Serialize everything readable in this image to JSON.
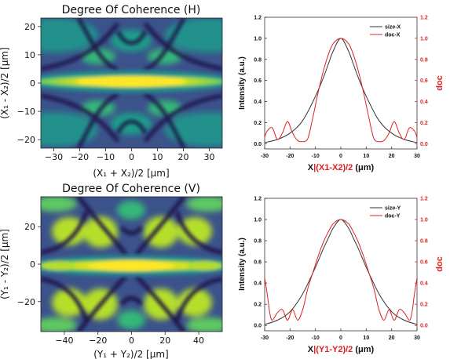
{
  "chart_data": [
    {
      "type": "heatmap",
      "title": "Degree Of Coherence (H)",
      "xlabel": "(X₁ + X₂)/2 [μm]",
      "ylabel": "(X₁ - X₂)/2 [μm]",
      "xlim": [
        -35,
        35
      ],
      "ylim": [
        -23,
        23
      ],
      "xticks": [
        -30,
        -20,
        -10,
        0,
        10,
        20,
        30
      ],
      "yticks": [
        20,
        10,
        0,
        -10,
        -20
      ],
      "xtick_labels": [
        "−30",
        "−20",
        "−10",
        "0",
        "10",
        "20",
        "30"
      ],
      "ytick_labels": [
        "20",
        "10",
        "0",
        "−10",
        "−20"
      ],
      "colormap": "viridis"
    },
    {
      "type": "line",
      "xlabel_prefix": "X",
      "xlabel_red": "|(X1-X2)/2",
      "xlabel_suffix": " (μm)",
      "ylabel": "Intensity (a.u.)",
      "y2label": "doc",
      "xlim": [
        -30,
        30
      ],
      "ylim": [
        -0.05,
        1.2
      ],
      "y2lim": [
        -0.05,
        1.2
      ],
      "xticks": [
        -30,
        -20,
        -10,
        0,
        10,
        20,
        30
      ],
      "xtick_labels": [
        "-30",
        "-20",
        "-10",
        "0",
        "10",
        "20",
        "30"
      ],
      "yticks": [
        0.0,
        0.2,
        0.4,
        0.6,
        0.8,
        1.0,
        1.2
      ],
      "ytick_labels": [
        "0.0",
        "0.2",
        "0.4",
        "0.6",
        "0.8",
        "1.0",
        "1.2"
      ],
      "legend_position": "top-right",
      "series": [
        {
          "name": "size-X",
          "color": "#333333",
          "x": [
            -30,
            -25,
            -20,
            -15,
            -10,
            -7,
            -5,
            -3,
            0,
            3,
            5,
            7,
            10,
            15,
            20,
            25,
            30
          ],
          "values": [
            0.01,
            0.04,
            0.1,
            0.22,
            0.45,
            0.62,
            0.75,
            0.88,
            1.0,
            0.88,
            0.75,
            0.62,
            0.45,
            0.22,
            0.1,
            0.04,
            0.01
          ]
        },
        {
          "name": "doc-X",
          "color": "#e02020",
          "x": [
            -30,
            -29,
            -27,
            -25,
            -23,
            -21,
            -19,
            -17,
            -15,
            -13,
            -11,
            -9,
            -7,
            -5,
            -3,
            0,
            3,
            5,
            7,
            9,
            11,
            13,
            15,
            17,
            19,
            21,
            23,
            25,
            27,
            29,
            30
          ],
          "values": [
            0.06,
            0.12,
            0.15,
            0.04,
            0.1,
            0.21,
            0.1,
            0.03,
            0.02,
            0.05,
            0.25,
            0.48,
            0.68,
            0.84,
            0.95,
            1.0,
            0.95,
            0.84,
            0.68,
            0.48,
            0.25,
            0.05,
            0.02,
            0.03,
            0.1,
            0.21,
            0.1,
            0.04,
            0.15,
            0.12,
            0.06
          ]
        }
      ]
    },
    {
      "type": "heatmap",
      "title": "Degree Of Coherence (V)",
      "xlabel": "(Y₁ + Y₂)/2 [μm]",
      "ylabel": "(Y₁ - Y₂)/2 [μm]",
      "xlim": [
        -54,
        54
      ],
      "ylim": [
        -36,
        36
      ],
      "xticks": [
        -40,
        -20,
        0,
        20,
        40
      ],
      "yticks": [
        20,
        0,
        -20
      ],
      "xtick_labels": [
        "−40",
        "−20",
        "0",
        "20",
        "40"
      ],
      "ytick_labels": [
        "20",
        "0",
        "−20"
      ],
      "colormap": "viridis"
    },
    {
      "type": "line",
      "xlabel_prefix": "X",
      "xlabel_red": "|(Y1-Y2)/2",
      "xlabel_suffix": " (μm)",
      "ylabel": "Intensity (a.u.)",
      "y2label": "doc",
      "xlim": [
        -30,
        30
      ],
      "ylim": [
        -0.05,
        1.2
      ],
      "y2lim": [
        -0.05,
        1.2
      ],
      "xticks": [
        -30,
        -20,
        -10,
        0,
        10,
        20,
        30
      ],
      "xtick_labels": [
        "-30",
        "-20",
        "-10",
        "0",
        "10",
        "20",
        "30"
      ],
      "yticks": [
        0.0,
        0.2,
        0.4,
        0.6,
        0.8,
        1.0,
        1.2
      ],
      "ytick_labels": [
        "0.0",
        "0.2",
        "0.4",
        "0.6",
        "0.8",
        "1.0",
        "1.2"
      ],
      "legend_position": "top-right",
      "series": [
        {
          "name": "size-Y",
          "color": "#333333",
          "x": [
            -30,
            -25,
            -20,
            -15,
            -10,
            -7,
            -5,
            -3,
            0,
            3,
            5,
            7,
            10,
            15,
            20,
            25,
            30
          ],
          "values": [
            0.01,
            0.05,
            0.13,
            0.3,
            0.55,
            0.72,
            0.82,
            0.92,
            1.0,
            0.92,
            0.82,
            0.72,
            0.55,
            0.3,
            0.13,
            0.05,
            0.01
          ]
        },
        {
          "name": "doc-Y",
          "color": "#e02020",
          "x": [
            -30,
            -29,
            -28,
            -27,
            -25,
            -23,
            -21,
            -19,
            -17,
            -15,
            -13,
            -11,
            -9,
            -7,
            -5,
            -3,
            0,
            3,
            5,
            7,
            9,
            11,
            13,
            15,
            17,
            19,
            21,
            23,
            25,
            27,
            28,
            29,
            30
          ],
          "values": [
            0.45,
            0.3,
            0.12,
            0.05,
            0.12,
            0.15,
            0.05,
            0.15,
            0.05,
            0.15,
            0.35,
            0.5,
            0.65,
            0.78,
            0.88,
            0.96,
            1.0,
            0.96,
            0.88,
            0.78,
            0.65,
            0.5,
            0.35,
            0.15,
            0.05,
            0.15,
            0.05,
            0.15,
            0.12,
            0.05,
            0.12,
            0.3,
            0.45
          ]
        }
      ]
    }
  ]
}
